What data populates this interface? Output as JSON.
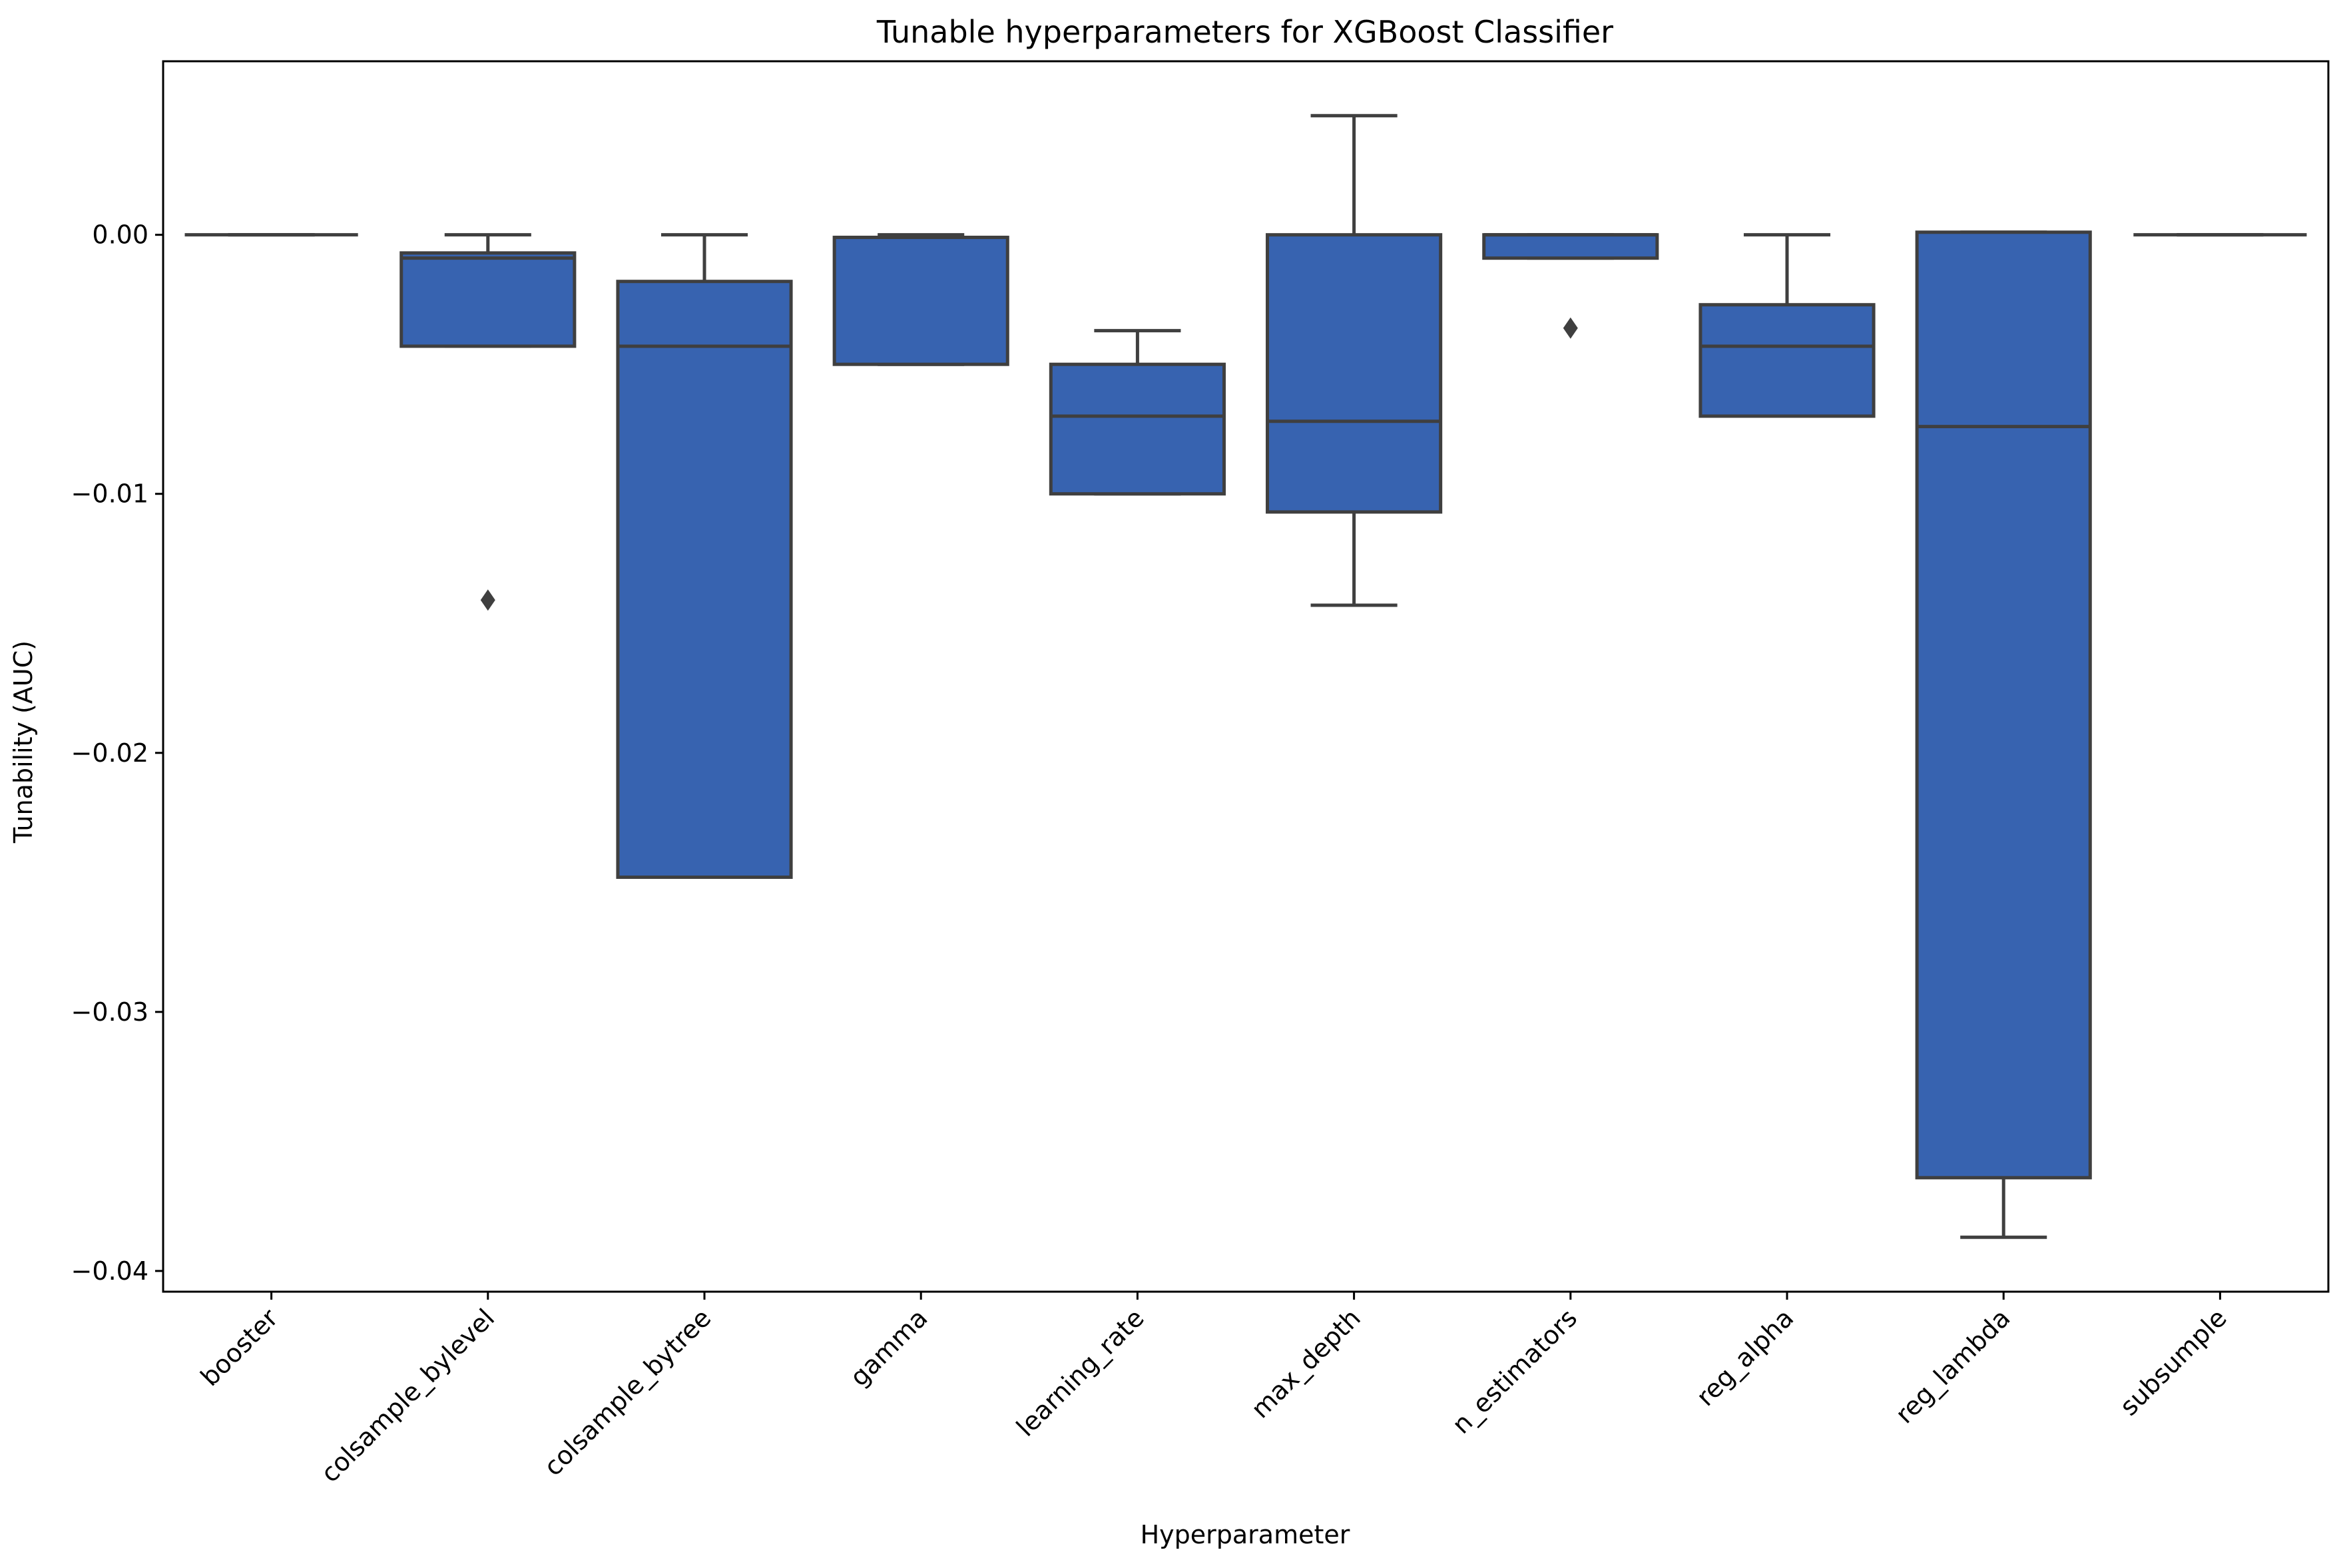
{
  "chart_data": {
    "type": "box",
    "title": "Tunable hyperparameters for XGBoost Classifier",
    "xlabel": "Hyperparameter",
    "ylabel": "Tunability (AUC)",
    "ylim": [
      -0.0408,
      0.0067
    ],
    "yticks": [
      0.0,
      -0.01,
      -0.02,
      -0.03,
      -0.04
    ],
    "ytick_labels": [
      "0.00",
      "−0.01",
      "−0.02",
      "−0.03",
      "−0.04"
    ],
    "grid": false,
    "categories": [
      "booster",
      "colsample_bylevel",
      "colsample_bytree",
      "gamma",
      "learning_rate",
      "max_depth",
      "n_estimators",
      "reg_alpha",
      "reg_lambda",
      "subsumple"
    ],
    "boxes": [
      {
        "whisker_low": 0.0,
        "q1": 0.0,
        "median": 0.0,
        "q3": 0.0,
        "whisker_high": 0.0,
        "outliers": []
      },
      {
        "whisker_low": -0.0043,
        "q1": -0.0043,
        "median": -0.0009,
        "q3": -0.0007,
        "whisker_high": 0.0,
        "outliers": [
          -0.0141
        ]
      },
      {
        "whisker_low": -0.0248,
        "q1": -0.0248,
        "median": -0.0043,
        "q3": -0.0018,
        "whisker_high": 0.0,
        "outliers": []
      },
      {
        "whisker_low": -0.005,
        "q1": -0.005,
        "median": -0.0001,
        "q3": -0.0001,
        "whisker_high": 0.0,
        "outliers": []
      },
      {
        "whisker_low": -0.01,
        "q1": -0.01,
        "median": -0.007,
        "q3": -0.005,
        "whisker_high": -0.0037,
        "outliers": []
      },
      {
        "whisker_low": -0.0143,
        "q1": -0.0107,
        "median": -0.0072,
        "q3": 0.0,
        "whisker_high": 0.0046,
        "outliers": []
      },
      {
        "whisker_low": -0.0009,
        "q1": -0.0009,
        "median": 0.0,
        "q3": 0.0,
        "whisker_high": 0.0,
        "outliers": [
          -0.0036
        ]
      },
      {
        "whisker_low": -0.007,
        "q1": -0.007,
        "median": -0.0043,
        "q3": -0.0027,
        "whisker_high": 0.0,
        "outliers": []
      },
      {
        "whisker_low": -0.0387,
        "q1": -0.0364,
        "median": -0.0074,
        "q3": 0.0001,
        "whisker_high": 0.0001,
        "outliers": []
      },
      {
        "whisker_low": 0.0,
        "q1": 0.0,
        "median": 0.0,
        "q3": 0.0,
        "whisker_high": 0.0,
        "outliers": []
      }
    ],
    "colors": {
      "box_fill": "#3763b0",
      "line": "#3f3f3f",
      "axis": "#000000",
      "background": "#ffffff"
    }
  }
}
